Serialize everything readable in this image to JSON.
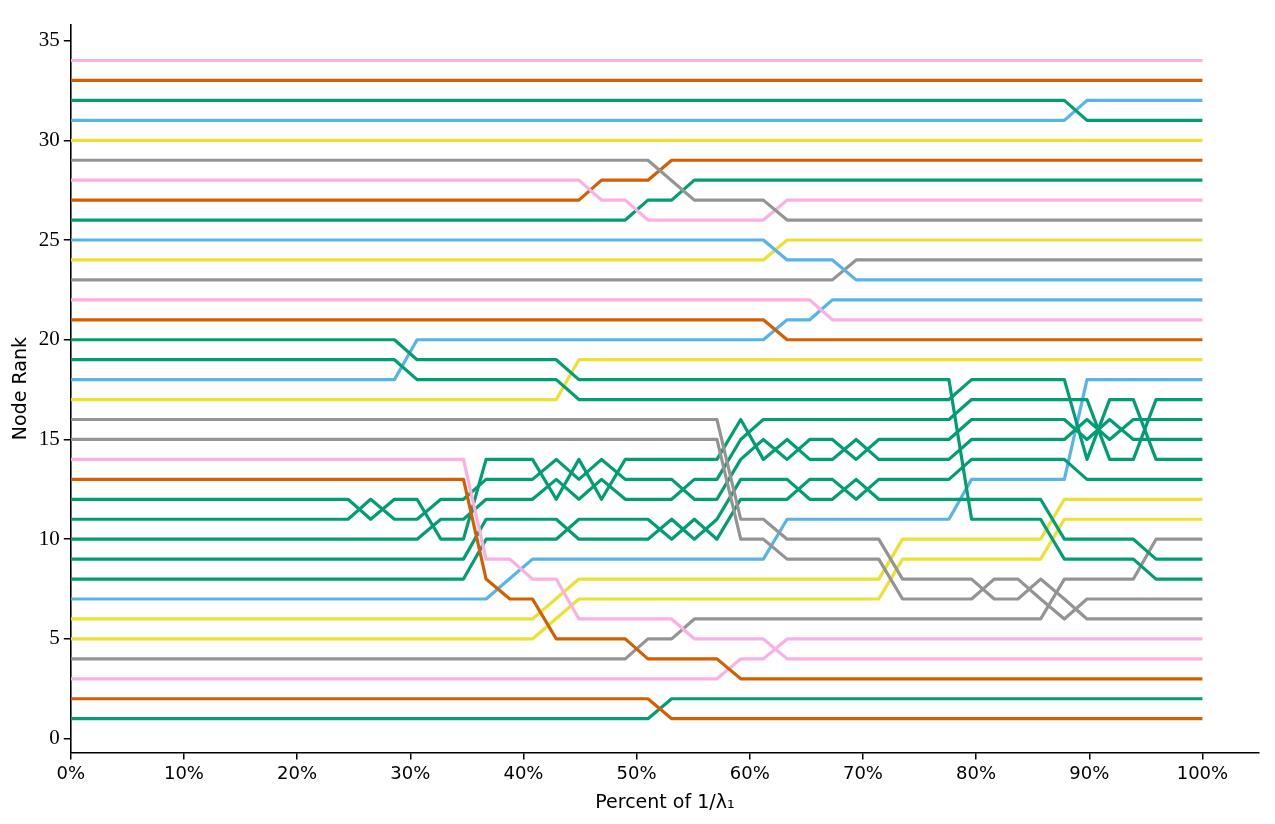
{
  "chart_data": {
    "type": "line",
    "xlabel": "Percent of 1/λ₁",
    "ylabel": "Node Rank",
    "xlim": [
      0,
      105
    ],
    "xticks": [
      {
        "value": 0,
        "label": "0%"
      },
      {
        "value": 10,
        "label": "10%"
      },
      {
        "value": 20,
        "label": "20%"
      },
      {
        "value": 30,
        "label": "30%"
      },
      {
        "value": 40,
        "label": "40%"
      },
      {
        "value": 50,
        "label": "50%"
      },
      {
        "value": 60,
        "label": "60%"
      },
      {
        "value": 70,
        "label": "70%"
      },
      {
        "value": 80,
        "label": "80%"
      },
      {
        "value": 90,
        "label": "90%"
      },
      {
        "value": 100,
        "label": "100%"
      }
    ],
    "ylim": [
      -0.7,
      35.8
    ],
    "yticks": [
      0,
      5,
      10,
      15,
      20,
      25,
      30,
      35
    ],
    "series": [
      {
        "color": "#fbafe4",
        "x": [
          0,
          100
        ],
        "values": [
          34,
          34
        ]
      },
      {
        "color": "#d55e00",
        "x": [
          0,
          100
        ],
        "values": [
          33,
          33
        ]
      },
      {
        "color": "#029e73",
        "x": [
          0,
          87.8,
          89.8,
          100
        ],
        "values": [
          32,
          32,
          31,
          31
        ]
      },
      {
        "color": "#56b4e9",
        "x": [
          0,
          87.8,
          89.8,
          100
        ],
        "values": [
          31,
          31,
          32,
          32
        ]
      },
      {
        "color": "#ece133",
        "x": [
          0,
          100
        ],
        "values": [
          30,
          30
        ]
      },
      {
        "color": "#949494",
        "x": [
          0,
          51.0,
          55.1,
          61.2,
          63.3,
          100
        ],
        "values": [
          29,
          29,
          27,
          27,
          26,
          26
        ]
      },
      {
        "color": "#fbafe4",
        "x": [
          0,
          44.9,
          46.9,
          49.0,
          51.0,
          61.2,
          63.3,
          100
        ],
        "values": [
          28,
          28,
          27,
          27,
          26,
          26,
          27,
          27
        ]
      },
      {
        "color": "#d55e00",
        "x": [
          0,
          44.9,
          46.9,
          51.0,
          53.1,
          100
        ],
        "values": [
          27,
          27,
          28,
          28,
          29,
          29
        ]
      },
      {
        "color": "#029e73",
        "x": [
          0,
          49.0,
          51.0,
          53.1,
          55.1,
          100
        ],
        "values": [
          26,
          26,
          27,
          27,
          28,
          28
        ]
      },
      {
        "color": "#56b4e9",
        "x": [
          0,
          61.2,
          63.3,
          67.3,
          69.4,
          100
        ],
        "values": [
          25,
          25,
          24,
          24,
          23,
          23
        ]
      },
      {
        "color": "#ece133",
        "x": [
          0,
          61.2,
          63.3,
          100
        ],
        "values": [
          24,
          24,
          25,
          25
        ]
      },
      {
        "color": "#949494",
        "x": [
          0,
          67.3,
          69.4,
          100
        ],
        "values": [
          23,
          23,
          24,
          24
        ]
      },
      {
        "color": "#fbafe4",
        "x": [
          0,
          65.3,
          67.3,
          100
        ],
        "values": [
          22,
          22,
          21,
          21
        ]
      },
      {
        "color": "#d55e00",
        "x": [
          0,
          61.2,
          63.3,
          100
        ],
        "values": [
          21,
          21,
          20,
          20
        ]
      },
      {
        "color": "#029e73",
        "x": [
          0,
          28.6,
          30.6,
          42.9,
          44.9,
          77.6,
          79.6,
          85.7,
          87.8,
          93.9,
          95.9,
          100
        ],
        "values": [
          20,
          20,
          19,
          19,
          18,
          18,
          11,
          11,
          9,
          9,
          8,
          8
        ]
      },
      {
        "color": "#029e73",
        "x": [
          0,
          28.6,
          30.6,
          42.9,
          44.9,
          77.6,
          79.6,
          87.8,
          89.8,
          91.8,
          93.9,
          95.9,
          100
        ],
        "values": [
          19,
          19,
          18,
          18,
          17,
          17,
          18,
          18,
          14,
          17,
          17,
          14,
          14
        ]
      },
      {
        "color": "#56b4e9",
        "x": [
          0,
          28.6,
          30.6,
          61.2,
          63.3,
          65.3,
          67.3,
          100
        ],
        "values": [
          18,
          18,
          20,
          20,
          21,
          21,
          22,
          22
        ]
      },
      {
        "color": "#ece133",
        "x": [
          0,
          42.9,
          44.9,
          100
        ],
        "values": [
          17,
          17,
          19,
          19
        ]
      },
      {
        "color": "#949494",
        "x": [
          0,
          57.1,
          59.2,
          61.2,
          63.3,
          71.4,
          73.5,
          79.6,
          81.6,
          83.7,
          85.7,
          87.8,
          89.8,
          100
        ],
        "values": [
          16,
          16,
          11,
          11,
          10,
          10,
          8,
          8,
          7,
          7,
          8,
          7,
          6,
          6
        ]
      },
      {
        "color": "#949494",
        "x": [
          0,
          57.1,
          59.2,
          61.2,
          63.3,
          71.4,
          73.5,
          79.6,
          81.6,
          83.7,
          85.7,
          87.8,
          89.8,
          100
        ],
        "values": [
          15,
          15,
          10,
          10,
          9,
          9,
          7,
          7,
          8,
          8,
          7,
          6,
          7,
          7
        ]
      },
      {
        "color": "#fbafe4",
        "x": [
          0,
          34.7,
          36.7,
          38.8,
          40.8,
          42.9,
          44.9,
          53.1,
          55.1,
          61.2,
          63.3,
          100
        ],
        "values": [
          14,
          14,
          9,
          9,
          8,
          8,
          6,
          6,
          5,
          5,
          4,
          4
        ]
      },
      {
        "color": "#d55e00",
        "x": [
          0,
          34.7,
          36.7,
          38.8,
          40.8,
          42.9,
          49.0,
          51.0,
          57.1,
          59.2,
          100
        ],
        "values": [
          13,
          13,
          8,
          7,
          7,
          5,
          5,
          4,
          4,
          3,
          3
        ]
      },
      {
        "color": "#029e73",
        "x": [
          0,
          24.5,
          26.5,
          28.6,
          30.6,
          32.7,
          34.7,
          36.7,
          40.8,
          42.9,
          44.9,
          46.9,
          49.0,
          57.1,
          59.2,
          61.2,
          63.3,
          65.3,
          67.3,
          69.4,
          71.4,
          77.6,
          79.6,
          87.8,
          89.8,
          91.8,
          93.9,
          100
        ],
        "values": [
          12,
          12,
          11,
          12,
          12,
          10,
          10,
          14,
          14,
          12,
          14,
          12,
          14,
          14,
          16,
          14,
          15,
          14,
          14,
          15,
          14,
          14,
          15,
          15,
          16,
          15,
          16,
          16
        ]
      },
      {
        "color": "#029e73",
        "x": [
          0,
          24.5,
          26.5,
          28.6,
          30.6,
          32.7,
          34.7,
          36.7,
          40.8,
          42.9,
          44.9,
          46.9,
          49.0,
          53.1,
          55.1,
          57.1,
          59.2,
          61.2,
          63.3,
          65.3,
          67.3,
          69.4,
          71.4,
          77.6,
          79.6,
          87.8,
          89.8,
          91.8,
          93.9,
          100
        ],
        "values": [
          11,
          11,
          12,
          11,
          11,
          12,
          12,
          13,
          13,
          14,
          13,
          14,
          13,
          13,
          12,
          12,
          14,
          15,
          14,
          15,
          15,
          14,
          15,
          15,
          16,
          16,
          15,
          16,
          15,
          15
        ]
      },
      {
        "color": "#029e73",
        "x": [
          0,
          30.6,
          32.7,
          34.7,
          36.7,
          40.8,
          42.9,
          44.9,
          46.9,
          49.0,
          53.1,
          55.1,
          57.1,
          59.2,
          61.2,
          77.6,
          79.6,
          89.8,
          91.8,
          93.9,
          95.9,
          100
        ],
        "values": [
          10,
          10,
          11,
          11,
          12,
          12,
          13,
          12,
          13,
          12,
          12,
          13,
          13,
          15,
          16,
          16,
          17,
          17,
          14,
          14,
          17,
          17
        ]
      },
      {
        "color": "#029e73",
        "x": [
          0,
          34.7,
          36.7,
          42.9,
          44.9,
          51.0,
          53.1,
          55.1,
          57.1,
          59.2,
          63.3,
          65.3,
          67.3,
          69.4,
          71.4,
          85.7,
          87.8,
          93.9,
          95.9,
          100
        ],
        "values": [
          9,
          9,
          11,
          11,
          10,
          10,
          11,
          10,
          11,
          13,
          13,
          12,
          12,
          13,
          12,
          12,
          10,
          10,
          9,
          9
        ]
      },
      {
        "color": "#029e73",
        "x": [
          0,
          34.7,
          36.7,
          42.9,
          44.9,
          51.0,
          53.1,
          55.1,
          57.1,
          59.2,
          63.3,
          65.3,
          67.3,
          69.4,
          71.4,
          77.6,
          79.6,
          87.8,
          89.8,
          100
        ],
        "values": [
          8,
          8,
          10,
          10,
          11,
          11,
          10,
          11,
          10,
          12,
          12,
          13,
          13,
          12,
          13,
          13,
          14,
          14,
          13,
          13
        ]
      },
      {
        "color": "#56b4e9",
        "x": [
          0,
          36.7,
          40.8,
          61.2,
          63.3,
          77.6,
          79.6,
          87.8,
          89.8,
          100
        ],
        "values": [
          7,
          7,
          9,
          9,
          11,
          11,
          13,
          13,
          18,
          18
        ]
      },
      {
        "color": "#ece133",
        "x": [
          0,
          40.8,
          44.9,
          71.4,
          73.5,
          85.7,
          87.8,
          100
        ],
        "values": [
          6,
          6,
          8,
          8,
          10,
          10,
          12,
          12
        ]
      },
      {
        "color": "#ece133",
        "x": [
          0,
          40.8,
          44.9,
          71.4,
          73.5,
          85.7,
          87.8,
          100
        ],
        "values": [
          5,
          5,
          7,
          7,
          9,
          9,
          11,
          11
        ]
      },
      {
        "color": "#949494",
        "x": [
          0,
          49.0,
          51.0,
          53.1,
          55.1,
          85.7,
          87.8,
          93.9,
          95.9,
          100
        ],
        "values": [
          4,
          4,
          5,
          5,
          6,
          6,
          8,
          8,
          10,
          10
        ]
      },
      {
        "color": "#fbafe4",
        "x": [
          0,
          57.1,
          59.2,
          61.2,
          63.3,
          100
        ],
        "values": [
          3,
          3,
          4,
          4,
          5,
          5
        ]
      },
      {
        "color": "#d55e00",
        "x": [
          0,
          51.0,
          53.1,
          100
        ],
        "values": [
          2,
          2,
          1,
          1
        ]
      },
      {
        "color": "#029e73",
        "x": [
          0,
          51.0,
          53.1,
          100
        ],
        "values": [
          1,
          1,
          2,
          2
        ]
      }
    ]
  }
}
